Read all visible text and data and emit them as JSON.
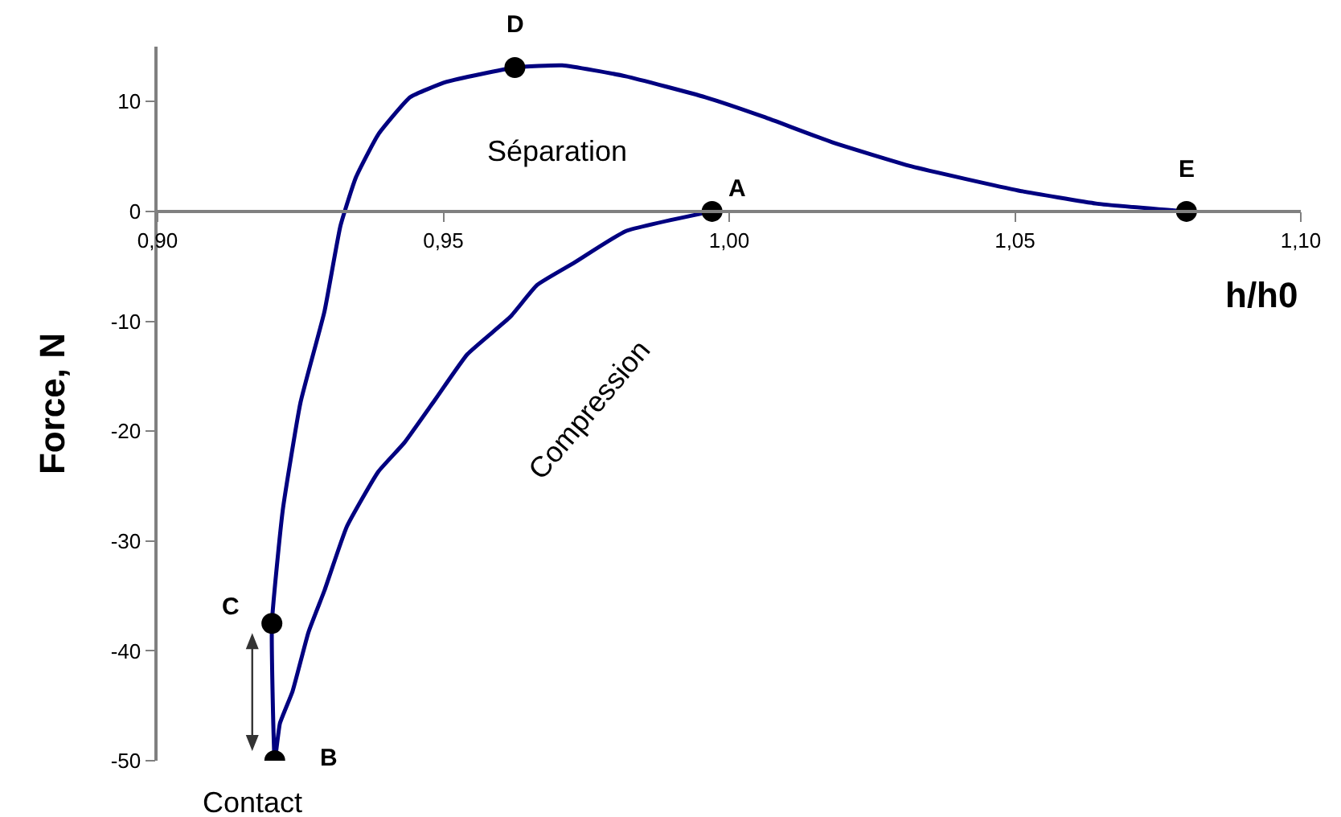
{
  "chart_data": {
    "type": "line",
    "xlabel": "h/h0",
    "ylabel": "Force, N",
    "xlim": [
      0.9,
      1.1
    ],
    "ylim": [
      -50,
      15
    ],
    "xticks": [
      {
        "value": 0.9,
        "label": "0,90"
      },
      {
        "value": 0.95,
        "label": "0,95"
      },
      {
        "value": 1.0,
        "label": "1,00"
      },
      {
        "value": 1.05,
        "label": "1,05"
      },
      {
        "value": 1.1,
        "label": "1,10"
      }
    ],
    "yticks": [
      -50,
      -40,
      -30,
      -20,
      -10,
      0,
      10
    ],
    "series": [
      {
        "color": "#000080",
        "marker": "none",
        "line_style": "solid",
        "x": [
          0.997,
          0.9819,
          0.9728,
          0.9664,
          0.9617,
          0.9542,
          0.9486,
          0.9431,
          0.9386,
          0.9331,
          0.9292,
          0.9264,
          0.9236,
          0.9214,
          0.9205,
          0.92,
          0.9219,
          0.925,
          0.9292,
          0.932,
          0.9347,
          0.9386,
          0.9442,
          0.9506,
          0.9625,
          0.9708,
          0.9819,
          0.9958,
          1.0061,
          1.018,
          1.0319,
          1.0506,
          1.0644,
          1.08
        ],
        "values": [
          0,
          -1.8,
          -4.7,
          -6.7,
          -9.6,
          -13.0,
          -17.1,
          -21.1,
          -23.7,
          -28.7,
          -34.5,
          -38.3,
          -43.7,
          -46.6,
          -50,
          -37.5,
          -27.2,
          -17.4,
          -9.1,
          -1.3,
          3.1,
          7.0,
          10.4,
          11.8,
          13.1,
          13.3,
          12.3,
          10.4,
          8.6,
          6.3,
          4.1,
          1.9,
          0.7,
          0
        ]
      },
      {
        "type": "scatter",
        "color": "#000000",
        "marker": "circle",
        "x": [
          0.997,
          0.9205,
          0.92,
          0.9625,
          1.08
        ],
        "values": [
          0,
          -50,
          -37.5,
          13.1,
          0
        ]
      }
    ],
    "annotations": [
      {
        "text": "A",
        "x": 0.997,
        "y": 0
      },
      {
        "text": "B",
        "x": 0.9205,
        "y": -50
      },
      {
        "text": "C",
        "x": 0.92,
        "y": -37.5
      },
      {
        "text": "D",
        "x": 0.9625,
        "y": 13.1
      },
      {
        "text": "E",
        "x": 1.08,
        "y": 0
      },
      "Séparation",
      "Compression",
      {
        "text": "Contact",
        "x": 0.9205,
        "y": -50
      }
    ]
  }
}
